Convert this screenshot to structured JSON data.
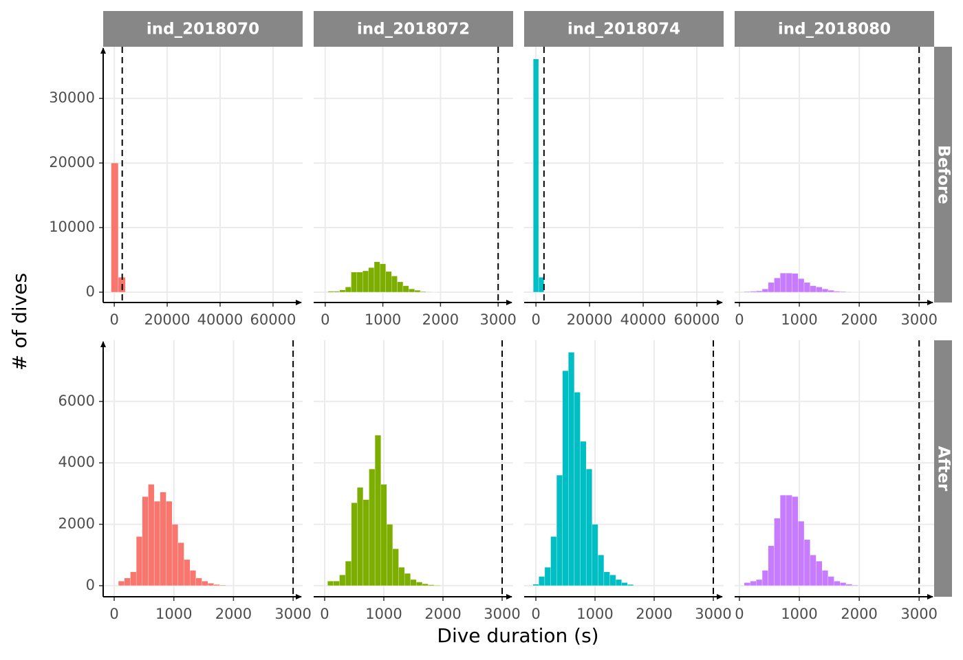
{
  "chart_data": {
    "type": "histogram",
    "x_label": "Dive duration (s)",
    "y_label": "# of dives",
    "vline": 3000,
    "columns": [
      {
        "name": "ind_2018070",
        "color": "#F8766D"
      },
      {
        "name": "ind_2018072",
        "color": "#7CAE00"
      },
      {
        "name": "ind_2018074",
        "color": "#00BFC4"
      },
      {
        "name": "ind_2018080",
        "color": "#C77CFF"
      }
    ],
    "rows": [
      {
        "label": "Before",
        "ylim": [
          -1600,
          38000
        ],
        "yticks": [
          0,
          10000,
          20000,
          30000
        ],
        "panels": [
          {
            "xlim": [
              -4200,
              71200
            ],
            "xticks": [
              0,
              20000,
              40000,
              60000
            ],
            "bins": [
              -1200,
              1500,
              4200
            ],
            "counts": [
              20000,
              2300
            ]
          },
          {
            "xlim": [
              -200,
              3260
            ],
            "xticks": [
              0,
              1000,
              2000,
              3000
            ],
            "bins": [
              50,
              150,
              250,
              350,
              450,
              550,
              650,
              750,
              850,
              950,
              1050,
              1150,
              1250,
              1350,
              1450,
              1550,
              1650,
              1750,
              1850,
              1950
            ],
            "counts": [
              150,
              150,
              350,
              800,
              3100,
              3100,
              3300,
              3800,
              4700,
              4400,
              3200,
              2500,
              1600,
              1000,
              500,
              300,
              100,
              50,
              20
            ]
          },
          {
            "xlim": [
              -4400,
              70000
            ],
            "xticks": [
              0,
              20000,
              40000,
              60000
            ],
            "bins": [
              -1000,
              1000,
              3000
            ],
            "counts": [
              36100,
              2300
            ]
          },
          {
            "xlim": [
              -80,
              3250
            ],
            "xticks": [
              0,
              1000,
              2000,
              3000
            ],
            "bins": [
              80,
              180,
              280,
              380,
              480,
              580,
              680,
              780,
              880,
              980,
              1080,
              1180,
              1280,
              1380,
              1480,
              1580,
              1680,
              1780,
              1880,
              1980
            ],
            "counts": [
              100,
              150,
              200,
              500,
              1500,
              2200,
              2950,
              2950,
              2900,
              2100,
              1500,
              1000,
              800,
              500,
              300,
              150,
              100,
              50,
              20
            ]
          }
        ]
      },
      {
        "label": "After",
        "ylim": [
          -360,
          7990
        ],
        "yticks": [
          0,
          2000,
          4000,
          6000
        ],
        "panels": [
          {
            "xlim": [
              -185,
              3160
            ],
            "xticks": [
              0,
              1000,
              2000,
              3000
            ],
            "bins": [
              70,
              170,
              270,
              370,
              470,
              570,
              670,
              770,
              870,
              970,
              1070,
              1170,
              1270,
              1370,
              1470,
              1570,
              1670,
              1770,
              1870
            ],
            "counts": [
              150,
              250,
              450,
              1600,
              2900,
              3300,
              2750,
              3050,
              2750,
              2000,
              1400,
              850,
              500,
              250,
              150,
              80,
              40,
              20
            ]
          },
          {
            "xlim": [
              -186,
              3186
            ],
            "xticks": [
              0,
              1000,
              2000,
              3000
            ],
            "bins": [
              50,
              150,
              250,
              350,
              450,
              550,
              650,
              750,
              850,
              950,
              1050,
              1150,
              1250,
              1350,
              1450,
              1550,
              1650,
              1750,
              1850,
              1950
            ],
            "counts": [
              150,
              150,
              350,
              800,
              2700,
              3200,
              2800,
              3800,
              4900,
              3300,
              2000,
              1200,
              600,
              400,
              200,
              120,
              60,
              30,
              15
            ]
          },
          {
            "xlim": [
              -198,
              3174
            ],
            "xticks": [
              0,
              1000,
              2000,
              3000
            ],
            "bins": [
              -50,
              50,
              150,
              250,
              350,
              450,
              550,
              650,
              750,
              850,
              950,
              1050,
              1150,
              1250,
              1350,
              1450,
              1550,
              1650
            ],
            "counts": [
              50,
              300,
              600,
              1600,
              3600,
              7000,
              7600,
              6300,
              4700,
              3800,
              2000,
              1000,
              450,
              350,
              200,
              100,
              40
            ]
          },
          {
            "xlim": [
              -80,
              3250
            ],
            "xticks": [
              0,
              1000,
              2000,
              3000
            ],
            "bins": [
              80,
              180,
              280,
              380,
              480,
              580,
              680,
              780,
              880,
              980,
              1080,
              1180,
              1280,
              1380,
              1480,
              1580,
              1680,
              1780,
              1880,
              1980
            ],
            "counts": [
              100,
              150,
              200,
              500,
              1300,
              2200,
              2950,
              2950,
              2900,
              2100,
              1500,
              1000,
              800,
              500,
              300,
              150,
              100,
              50,
              20
            ]
          }
        ]
      }
    ]
  }
}
